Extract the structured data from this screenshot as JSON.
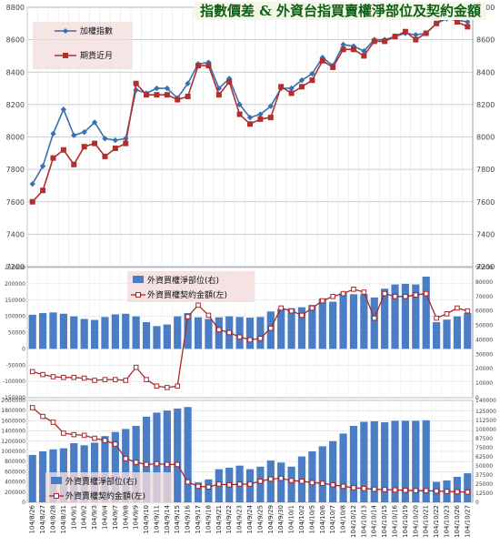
{
  "title": "指數價差 & 外資台指買賣權淨部位及契約金額",
  "chart_data": [
    {
      "type": "line",
      "categories": [
        "104/8/26",
        "104/8/27",
        "104/8/28",
        "104/8/31",
        "104/9/1",
        "104/9/2",
        "104/9/3",
        "104/9/4",
        "104/9/7",
        "104/9/8",
        "104/9/9",
        "104/9/10",
        "104/9/11",
        "104/9/14",
        "104/9/15",
        "104/9/16",
        "104/9/17",
        "104/9/18",
        "104/9/21",
        "104/9/22",
        "104/9/23",
        "104/9/24",
        "104/9/25",
        "104/9/29",
        "104/9/30",
        "104/10/1",
        "104/10/2",
        "104/10/5",
        "104/10/6",
        "104/10/7",
        "104/10/8",
        "104/10/12",
        "104/10/13",
        "104/10/14",
        "104/10/15",
        "104/10/16",
        "104/10/19",
        "104/10/20",
        "104/10/21",
        "104/10/22",
        "104/10/23",
        "104/10/26",
        "104/10/27"
      ],
      "series": [
        {
          "name": "加權指數",
          "color": "#3a6fb0",
          "values": [
            7710,
            7820,
            8020,
            8170,
            8010,
            8030,
            8090,
            7990,
            7980,
            7990,
            8290,
            8270,
            8300,
            8300,
            8240,
            8330,
            8450,
            8460,
            8300,
            8360,
            8200,
            8120,
            8140,
            8190,
            8300,
            8300,
            8350,
            8390,
            8490,
            8440,
            8570,
            8560,
            8530,
            8600,
            8600,
            8620,
            8640,
            8630,
            8640,
            8700,
            8730,
            8720,
            8710
          ]
        },
        {
          "name": "期貨近月",
          "color": "#b03030",
          "values": [
            7600,
            7670,
            7870,
            7920,
            7830,
            7940,
            7960,
            7880,
            7930,
            7960,
            8330,
            8260,
            8260,
            8260,
            8230,
            8250,
            8440,
            8440,
            8260,
            8340,
            8140,
            8080,
            8110,
            8120,
            8310,
            8270,
            8310,
            8350,
            8470,
            8430,
            8540,
            8540,
            8500,
            8590,
            8590,
            8620,
            8650,
            8600,
            8640,
            8700,
            8750,
            8710,
            8680
          ]
        }
      ],
      "ylim": [
        7200,
        8800
      ],
      "yticks": [
        7200,
        7400,
        7600,
        7800,
        8000,
        8200,
        8400,
        8600,
        8800
      ]
    },
    {
      "type": "bar",
      "series": [
        {
          "name": "外資買權淨部位(右)",
          "color": "#4a7dc4",
          "axis": "left",
          "values": [
            105000,
            110000,
            112000,
            108000,
            100000,
            92000,
            89000,
            98000,
            106000,
            108000,
            100000,
            82000,
            70000,
            75000,
            100000,
            110000,
            97000,
            92000,
            97000,
            100000,
            98000,
            96000,
            98000,
            115000,
            123000,
            125000,
            128000,
            135000,
            155000,
            145000,
            172000,
            168000,
            168000,
            158000,
            185000,
            198000,
            200000,
            198000,
            222000,
            82000,
            90000,
            100000,
            110000
          ]
        },
        {
          "name": "外資買權契約金額(左)",
          "color": "#a8282a",
          "axis": "right",
          "values": [
            18000,
            16000,
            14500,
            14000,
            14000,
            13500,
            12000,
            12500,
            12500,
            12000,
            21000,
            12500,
            8000,
            7000,
            8000,
            56000,
            64000,
            57000,
            47000,
            45000,
            42000,
            40000,
            41000,
            48000,
            62000,
            60000,
            57000,
            62000,
            67000,
            70000,
            72000,
            75000,
            73000,
            55000,
            72000,
            70000,
            70000,
            71000,
            72000,
            55000,
            58000,
            62000,
            60000
          ]
        }
      ],
      "ylim_left": [
        -150000,
        250000
      ],
      "yticks_left": [
        -150000,
        -100000,
        -50000,
        0,
        50000,
        100000,
        150000,
        200000,
        250000
      ],
      "ylim_right": [
        0,
        90000
      ],
      "yticks_right": [
        0,
        10000,
        20000,
        30000,
        40000,
        50000,
        60000,
        70000,
        80000,
        90000
      ]
    },
    {
      "type": "bar",
      "series": [
        {
          "name": "外資賣權淨部位(右)",
          "color": "#4a7dc4",
          "axis": "left",
          "values": [
            930000,
            1000000,
            1040000,
            1060000,
            1160000,
            1120000,
            1170000,
            1300000,
            1380000,
            1440000,
            1500000,
            1680000,
            1760000,
            1800000,
            1840000,
            1870000,
            390000,
            450000,
            650000,
            680000,
            720000,
            650000,
            700000,
            820000,
            780000,
            700000,
            900000,
            1000000,
            1100000,
            1200000,
            1350000,
            1500000,
            1580000,
            1590000,
            1570000,
            1600000,
            1600000,
            1600000,
            1610000,
            400000,
            430000,
            500000,
            570000
          ]
        },
        {
          "name": "外資賣權契約金額(左)",
          "color": "#a8282a",
          "axis": "right",
          "values": [
            130000,
            118000,
            110000,
            95000,
            93000,
            92000,
            88000,
            85000,
            80000,
            60000,
            55000,
            52000,
            53000,
            52000,
            52000,
            28000,
            22000,
            21000,
            25000,
            24000,
            25000,
            25000,
            29000,
            32000,
            33000,
            30000,
            29000,
            27000,
            26000,
            24000,
            22000,
            20000,
            19000,
            18000,
            17500,
            17000,
            16500,
            16000,
            16000,
            15500,
            15000,
            14500,
            14000
          ]
        }
      ],
      "ylim_left": [
        0,
        2000000
      ],
      "yticks_left": [
        0,
        200000,
        400000,
        600000,
        800000,
        1000000,
        1200000,
        1400000,
        1600000,
        1800000,
        2000000
      ],
      "ylim_right": [
        0,
        140000
      ],
      "yticks_right": [
        0,
        12500,
        25000,
        37500,
        50000,
        62500,
        75000,
        87500,
        100000,
        112500,
        125000,
        140000
      ]
    }
  ]
}
